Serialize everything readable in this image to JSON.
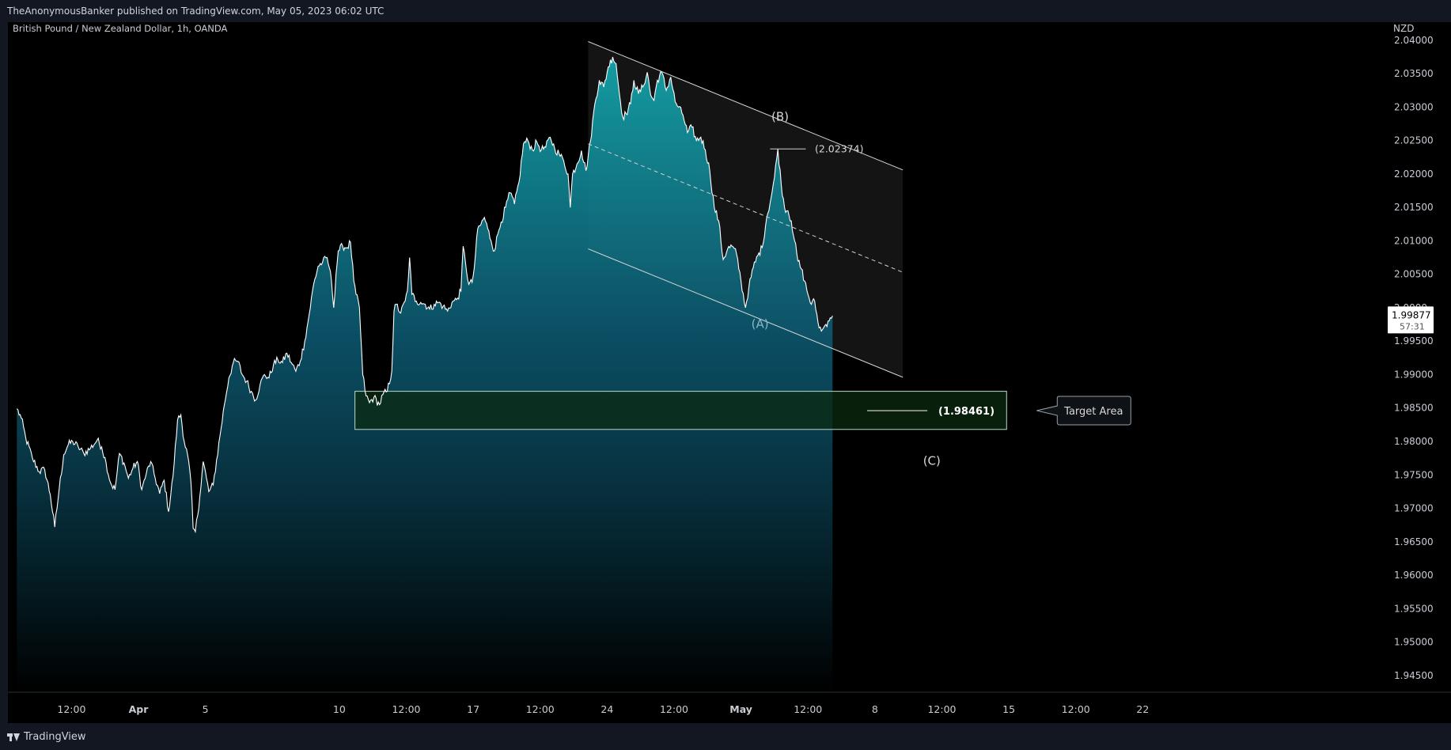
{
  "publisher_line": "TheAnonymousBanker published on TradingView.com, May 05, 2023 06:02 UTC",
  "brand": "TradingView",
  "icons": {
    "brand": "tradingview-logo-icon"
  },
  "colors": {
    "frame": "#131722",
    "plot_bg": "#000000",
    "line": "#ffffff",
    "area_top": "#14a3a8",
    "area_bottom": "#000000",
    "channel_fill": "#141414",
    "target_fill": "#0b2a10",
    "target_border": "#b7dbc8"
  },
  "chart_data": {
    "type": "area",
    "title": "British Pound / New Zealand Dollar, 1h, OANDA",
    "currency": "NZD",
    "last_price": "1.99877",
    "countdown": "57:31",
    "ylim": [
      1.9425,
      2.0427
    ],
    "y_ticks": [
      2.04,
      2.035,
      2.03,
      2.025,
      2.02,
      2.015,
      2.01,
      2.005,
      1.995,
      1.99,
      1.985,
      1.98,
      1.975,
      1.97,
      1.965,
      1.96,
      1.955,
      1.95,
      1.945
    ],
    "y_tick_labels": [
      "2.04000",
      "2.03500",
      "2.03000",
      "2.02500",
      "2.02000",
      "2.01500",
      "2.01000",
      "2.00500",
      "1.99500",
      "1.99000",
      "1.98500",
      "1.98000",
      "1.97500",
      "1.97000",
      "1.96500",
      "1.96000",
      "1.95500",
      "1.95000",
      "1.94500"
    ],
    "y_tick_partial": "2.0000",
    "y_tick_partial_value": 2.0,
    "x_ticks": [
      {
        "label": "12:00",
        "bar": 49
      },
      {
        "label": "Apr",
        "bar": 109,
        "bold": true
      },
      {
        "label": "5",
        "bar": 169
      },
      {
        "label": "10",
        "bar": 289
      },
      {
        "label": "12:00",
        "bar": 349
      },
      {
        "label": "17",
        "bar": 409
      },
      {
        "label": "12:00",
        "bar": 469
      },
      {
        "label": "24",
        "bar": 529
      },
      {
        "label": "12:00",
        "bar": 589
      },
      {
        "label": "May",
        "bar": 649,
        "bold": true
      },
      {
        "label": "12:00",
        "bar": 709
      },
      {
        "label": "8",
        "bar": 769
      },
      {
        "label": "12:00",
        "bar": 829
      },
      {
        "label": "15",
        "bar": 889
      },
      {
        "label": "12:00",
        "bar": 949
      },
      {
        "label": "22",
        "bar": 1009
      }
    ],
    "x_bar_range": [
      -8,
      1052
    ],
    "price_series": {
      "name": "GBPNZD",
      "keypoints": [
        [
          0,
          1.9849
        ],
        [
          4,
          1.9835
        ],
        [
          8,
          1.9805
        ],
        [
          14,
          1.9775
        ],
        [
          20,
          1.9755
        ],
        [
          25,
          1.9758
        ],
        [
          30,
          1.972
        ],
        [
          34,
          1.9672
        ],
        [
          38,
          1.973
        ],
        [
          42,
          1.978
        ],
        [
          46,
          1.9795
        ],
        [
          50,
          1.98
        ],
        [
          55,
          1.9792
        ],
        [
          60,
          1.9782
        ],
        [
          66,
          1.979
        ],
        [
          72,
          1.9802
        ],
        [
          76,
          1.9792
        ],
        [
          80,
          1.9768
        ],
        [
          84,
          1.9738
        ],
        [
          88,
          1.9728
        ],
        [
          92,
          1.9782
        ],
        [
          96,
          1.9768
        ],
        [
          100,
          1.9745
        ],
        [
          104,
          1.976
        ],
        [
          108,
          1.977
        ],
        [
          112,
          1.9728
        ],
        [
          116,
          1.9752
        ],
        [
          120,
          1.977
        ],
        [
          124,
          1.9745
        ],
        [
          128,
          1.9722
        ],
        [
          132,
          1.9742
        ],
        [
          136,
          1.9695
        ],
        [
          140,
          1.9748
        ],
        [
          144,
          1.9832
        ],
        [
          147,
          1.984
        ],
        [
          150,
          1.98
        ],
        [
          153,
          1.978
        ],
        [
          156,
          1.974
        ],
        [
          158,
          1.967
        ],
        [
          160,
          1.9665
        ],
        [
          164,
          1.9718
        ],
        [
          167,
          1.977
        ],
        [
          170,
          1.9745
        ],
        [
          172,
          1.9725
        ],
        [
          176,
          1.9735
        ],
        [
          182,
          1.9808
        ],
        [
          186,
          1.9855
        ],
        [
          190,
          1.9895
        ],
        [
          194,
          1.9918
        ],
        [
          198,
          1.992
        ],
        [
          202,
          1.99
        ],
        [
          206,
          1.989
        ],
        [
          210,
          1.9875
        ],
        [
          214,
          1.9862
        ],
        [
          218,
          1.9885
        ],
        [
          222,
          1.99
        ],
        [
          226,
          1.9895
        ],
        [
          230,
          1.9915
        ],
        [
          234,
          1.9922
        ],
        [
          238,
          1.9918
        ],
        [
          242,
          1.9932
        ],
        [
          246,
          1.9918
        ],
        [
          250,
          1.9905
        ],
        [
          254,
          1.992
        ],
        [
          258,
          1.995
        ],
        [
          262,
          1.999
        ],
        [
          266,
          2.0035
        ],
        [
          270,
          2.0062
        ],
        [
          274,
          2.0068
        ],
        [
          278,
          2.0075
        ],
        [
          280,
          2.006
        ],
        [
          282,
          2.004
        ],
        [
          284,
          2.0
        ],
        [
          286,
          2.005
        ],
        [
          288,
          2.0085
        ],
        [
          292,
          2.0092
        ],
        [
          296,
          2.009
        ],
        [
          299,
          2.0098
        ],
        [
          302,
          2.004
        ],
        [
          304,
          2.002
        ],
        [
          307,
          2.0
        ],
        [
          310,
          1.99
        ],
        [
          313,
          1.9868
        ],
        [
          316,
          1.9858
        ],
        [
          320,
          1.9866
        ],
        [
          325,
          1.9855
        ],
        [
          328,
          1.987
        ],
        [
          332,
          1.9875
        ],
        [
          336,
          1.9905
        ],
        [
          338,
          1.9995
        ],
        [
          340,
          2.0005
        ],
        [
          344,
          1.9992
        ],
        [
          348,
          2.001
        ],
        [
          350,
          2.0025
        ],
        [
          352,
          2.0075
        ],
        [
          354,
          2.002
        ],
        [
          358,
          2.001
        ],
        [
          362,
          2.0008
        ],
        [
          366,
          2.0005
        ],
        [
          370,
          1.9998
        ],
        [
          374,
          2.0005
        ],
        [
          378,
          2.0008
        ],
        [
          382,
          2.0002
        ],
        [
          386,
          1.9995
        ],
        [
          390,
          2.0008
        ],
        [
          394,
          2.0012
        ],
        [
          398,
          2.0025
        ],
        [
          400,
          2.0092
        ],
        [
          402,
          2.0068
        ],
        [
          405,
          2.0035
        ],
        [
          408,
          2.0038
        ],
        [
          410,
          2.006
        ],
        [
          413,
          2.0118
        ],
        [
          416,
          2.0125
        ],
        [
          419,
          2.0135
        ],
        [
          422,
          2.0118
        ],
        [
          425,
          2.01
        ],
        [
          428,
          2.0085
        ],
        [
          431,
          2.011
        ],
        [
          434,
          2.0128
        ],
        [
          438,
          2.015
        ],
        [
          442,
          2.0172
        ],
        [
          446,
          2.0155
        ],
        [
          450,
          2.0188
        ],
        [
          454,
          2.0245
        ],
        [
          458,
          2.025
        ],
        [
          462,
          2.0236
        ],
        [
          466,
          2.0248
        ],
        [
          470,
          2.0236
        ],
        [
          474,
          2.024
        ],
        [
          478,
          2.0255
        ],
        [
          482,
          2.0238
        ],
        [
          486,
          2.023
        ],
        [
          490,
          2.022
        ],
        [
          494,
          2.02
        ],
        [
          496,
          2.015
        ],
        [
          498,
          2.02
        ],
        [
          502,
          2.0215
        ],
        [
          506,
          2.0235
        ],
        [
          510,
          2.0205
        ],
        [
          514,
          2.0248
        ],
        [
          518,
          2.0305
        ],
        [
          522,
          2.034
        ],
        [
          526,
          2.033
        ],
        [
          530,
          2.036
        ],
        [
          534,
          2.0375
        ],
        [
          537,
          2.0365
        ],
        [
          540,
          2.032
        ],
        [
          543,
          2.0285
        ],
        [
          546,
          2.029
        ],
        [
          550,
          2.0305
        ],
        [
          553,
          2.034
        ],
        [
          557,
          2.032
        ],
        [
          561,
          2.033
        ],
        [
          565,
          2.0352
        ],
        [
          568,
          2.0318
        ],
        [
          571,
          2.031
        ],
        [
          574,
          2.034
        ],
        [
          578,
          2.0352
        ],
        [
          582,
          2.0325
        ],
        [
          586,
          2.0345
        ],
        [
          590,
          2.0308
        ],
        [
          593,
          2.03
        ],
        [
          597,
          2.0288
        ],
        [
          601,
          2.0262
        ],
        [
          605,
          2.027
        ],
        [
          609,
          2.025
        ],
        [
          613,
          2.0255
        ],
        [
          617,
          2.0236
        ],
        [
          621,
          2.0205
        ],
        [
          625,
          2.015
        ],
        [
          629,
          2.013
        ],
        [
          633,
          2.0072
        ],
        [
          637,
          2.0088
        ],
        [
          641,
          2.0092
        ],
        [
          645,
          2.008
        ],
        [
          649,
          2.004
        ],
        [
          653,
          2.0
        ],
        [
          656,
          2.003
        ],
        [
          660,
          2.006
        ],
        [
          664,
          2.0078
        ],
        [
          668,
          2.009
        ],
        [
          672,
          2.0135
        ],
        [
          676,
          2.0165
        ],
        [
          679,
          2.0195
        ],
        [
          682,
          2.0237
        ],
        [
          685,
          2.0185
        ],
        [
          688,
          2.015
        ],
        [
          691,
          2.0145
        ],
        [
          694,
          2.013
        ],
        [
          697,
          2.01
        ],
        [
          700,
          2.007
        ],
        [
          703,
          2.0058
        ],
        [
          706,
          2.004
        ],
        [
          709,
          2.002
        ],
        [
          712,
          2.0005
        ],
        [
          715,
          2.001
        ],
        [
          718,
          1.9978
        ],
        [
          721,
          1.9965
        ],
        [
          723,
          1.997
        ],
        [
          725,
          1.9975
        ],
        [
          727,
          1.998
        ],
        [
          729,
          1.9985
        ],
        [
          731,
          1.9988
        ]
      ]
    },
    "channel": {
      "upper": [
        [
          512,
          2.0398
        ],
        [
          794,
          2.0206
        ]
      ],
      "lower": [
        [
          512,
          2.0088
        ],
        [
          794,
          1.9896
        ]
      ],
      "mid_dashed": [
        [
          512,
          2.0245
        ],
        [
          794,
          2.0053
        ]
      ]
    },
    "target_box": {
      "x_bars": [
        303,
        887
      ],
      "y_range": [
        1.9818,
        1.9875
      ]
    },
    "target_line": {
      "x_bars": [
        762,
        816
      ],
      "y": 1.98461
    },
    "b_line": {
      "x_bars": [
        675,
        707
      ],
      "y": 2.02374
    },
    "annotations": {
      "wave_a": "(A)",
      "wave_b": "(B)",
      "wave_c": "(C)",
      "b_level": "(2.02374)",
      "target_level": "(1.98461)",
      "target_callout": "Target Area"
    },
    "annotation_positions": {
      "wave_a": [
        666,
        1.997
      ],
      "wave_b": [
        684,
        2.028
      ],
      "wave_c": [
        820,
        1.9765
      ],
      "b_level": [
        737,
        2.02374
      ],
      "target_level": [
        851,
        1.98461
      ],
      "target_callout": [
        965,
        1.98461
      ]
    }
  }
}
